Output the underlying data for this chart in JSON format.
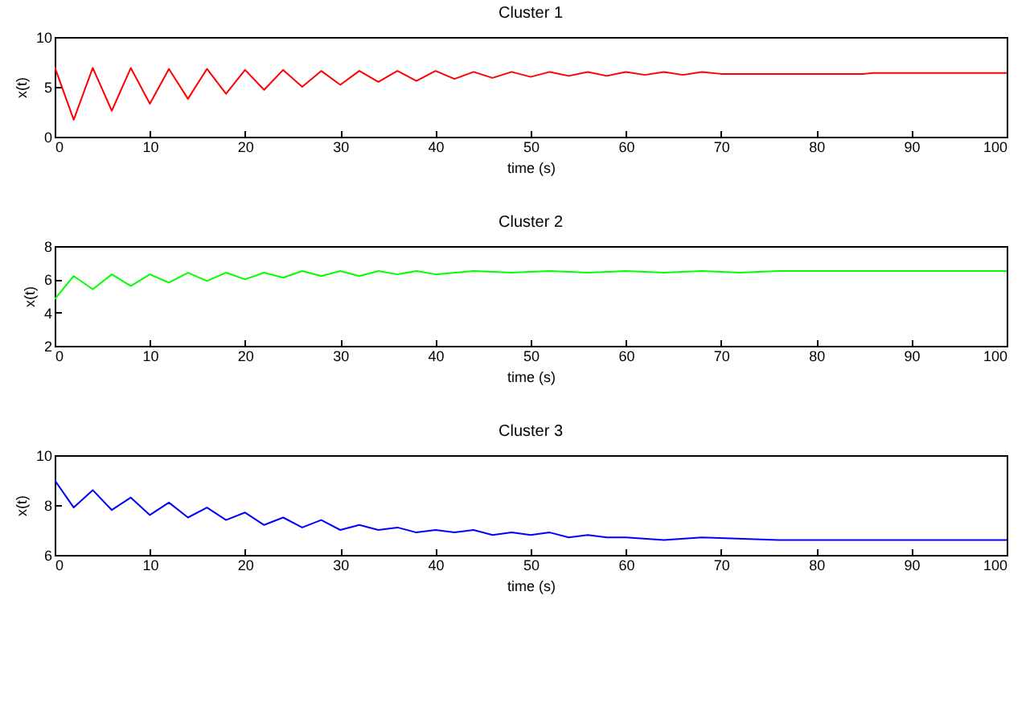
{
  "chart_data": [
    {
      "type": "line",
      "title": "Cluster 1",
      "xlabel": "time (s)",
      "ylabel": "x(t)",
      "xlim": [
        0,
        100
      ],
      "ylim": [
        0,
        10
      ],
      "xticks": [
        0,
        10,
        20,
        30,
        40,
        50,
        60,
        70,
        80,
        90,
        100
      ],
      "yticks": [
        0,
        5,
        10
      ],
      "x": [
        0,
        2,
        4,
        6,
        8,
        10,
        12,
        14,
        16,
        18,
        20,
        22,
        24,
        26,
        28,
        30,
        32,
        34,
        36,
        38,
        40,
        42,
        44,
        46,
        48,
        50,
        52,
        54,
        56,
        58,
        60,
        62,
        64,
        66,
        68,
        70,
        85,
        86,
        100
      ],
      "series": [
        {
          "color": "#ff0000",
          "values": [
            7.0,
            1.7,
            6.9,
            2.6,
            6.9,
            3.3,
            6.8,
            3.8,
            6.8,
            4.3,
            6.7,
            4.7,
            6.7,
            5.0,
            6.6,
            5.2,
            6.6,
            5.5,
            6.6,
            5.6,
            6.6,
            5.8,
            6.5,
            5.9,
            6.5,
            6.0,
            6.5,
            6.1,
            6.5,
            6.1,
            6.5,
            6.2,
            6.5,
            6.2,
            6.5,
            6.3,
            6.3,
            6.4,
            6.4
          ]
        }
      ]
    },
    {
      "type": "line",
      "title": "Cluster 2",
      "xlabel": "time (s)",
      "ylabel": "x(t)",
      "xlim": [
        0,
        100
      ],
      "ylim": [
        2,
        8
      ],
      "xticks": [
        0,
        10,
        20,
        30,
        40,
        50,
        60,
        70,
        80,
        90,
        100
      ],
      "yticks": [
        2,
        4,
        6,
        8
      ],
      "x": [
        0,
        2,
        4,
        6,
        8,
        10,
        12,
        14,
        16,
        18,
        20,
        22,
        24,
        26,
        28,
        30,
        32,
        34,
        36,
        38,
        40,
        44,
        48,
        52,
        56,
        60,
        64,
        68,
        72,
        76,
        100
      ],
      "series": [
        {
          "color": "#00ff00",
          "values": [
            4.8,
            6.2,
            5.4,
            6.3,
            5.6,
            6.3,
            5.8,
            6.4,
            5.9,
            6.4,
            6.0,
            6.4,
            6.1,
            6.5,
            6.2,
            6.5,
            6.2,
            6.5,
            6.3,
            6.5,
            6.3,
            6.5,
            6.4,
            6.5,
            6.4,
            6.5,
            6.4,
            6.5,
            6.4,
            6.5,
            6.5
          ]
        }
      ]
    },
    {
      "type": "line",
      "title": "Cluster 3",
      "xlabel": "time (s)",
      "ylabel": "x(t)",
      "xlim": [
        0,
        100
      ],
      "ylim": [
        6,
        10
      ],
      "xticks": [
        0,
        10,
        20,
        30,
        40,
        50,
        60,
        70,
        80,
        90,
        100
      ],
      "yticks": [
        6,
        8,
        10
      ],
      "x": [
        0,
        2,
        4,
        6,
        8,
        10,
        12,
        14,
        16,
        18,
        20,
        22,
        24,
        26,
        28,
        30,
        32,
        34,
        36,
        38,
        40,
        42,
        44,
        46,
        48,
        50,
        52,
        54,
        56,
        58,
        60,
        64,
        68,
        76,
        80,
        100
      ],
      "series": [
        {
          "color": "#0000ff",
          "values": [
            9.0,
            7.9,
            8.6,
            7.8,
            8.3,
            7.6,
            8.1,
            7.5,
            7.9,
            7.4,
            7.7,
            7.2,
            7.5,
            7.1,
            7.4,
            7.0,
            7.2,
            7.0,
            7.1,
            6.9,
            7.0,
            6.9,
            7.0,
            6.8,
            6.9,
            6.8,
            6.9,
            6.7,
            6.8,
            6.7,
            6.7,
            6.6,
            6.7,
            6.6,
            6.6,
            6.6
          ]
        }
      ]
    }
  ]
}
